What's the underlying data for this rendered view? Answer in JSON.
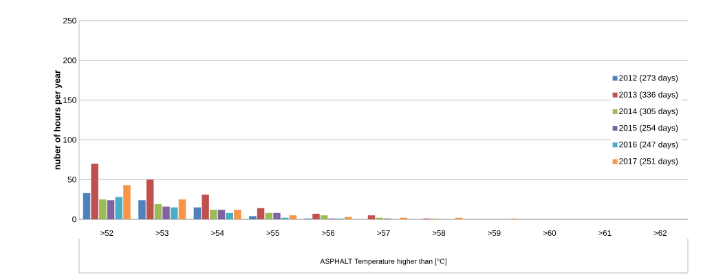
{
  "chart_data": {
    "type": "bar",
    "xlabel": "ASPHALT Temperature higher than [°C]",
    "ylabel": "nuber of hours per year",
    "categories": [
      ">52",
      ">53",
      ">54",
      ">55",
      ">56",
      ">57",
      ">58",
      ">59",
      ">60",
      ">61",
      ">62"
    ],
    "series": [
      {
        "name": "2012 (273 days)",
        "color": "#4f81bd",
        "values": [
          33,
          24,
          15,
          4,
          1,
          0,
          0,
          0,
          0,
          0,
          0
        ]
      },
      {
        "name": "2013 (336 days)",
        "color": "#c0504d",
        "values": [
          70,
          50,
          31,
          14,
          7,
          5,
          1,
          0,
          0,
          0,
          0
        ]
      },
      {
        "name": "2014 (305 days)",
        "color": "#9bbb59",
        "values": [
          25,
          19,
          12,
          8,
          5,
          2,
          1,
          0,
          0,
          0,
          0
        ]
      },
      {
        "name": "2015 (254 days)",
        "color": "#8064a2",
        "values": [
          24,
          16,
          12,
          8,
          1,
          1,
          0,
          0,
          0,
          0,
          0
        ]
      },
      {
        "name": "2016 (247 days)",
        "color": "#4bacc6",
        "values": [
          28,
          15,
          8,
          2,
          1,
          0,
          0,
          0,
          0,
          0,
          0
        ]
      },
      {
        "name": "2017 (251 days)",
        "color": "#f79646",
        "values": [
          43,
          25,
          12,
          5,
          3,
          2,
          2,
          1,
          0,
          0,
          0
        ]
      }
    ],
    "ylim": [
      0,
      250
    ],
    "yticks": [
      0,
      50,
      100,
      150,
      200,
      250
    ],
    "grid": "y",
    "legend": "right"
  }
}
